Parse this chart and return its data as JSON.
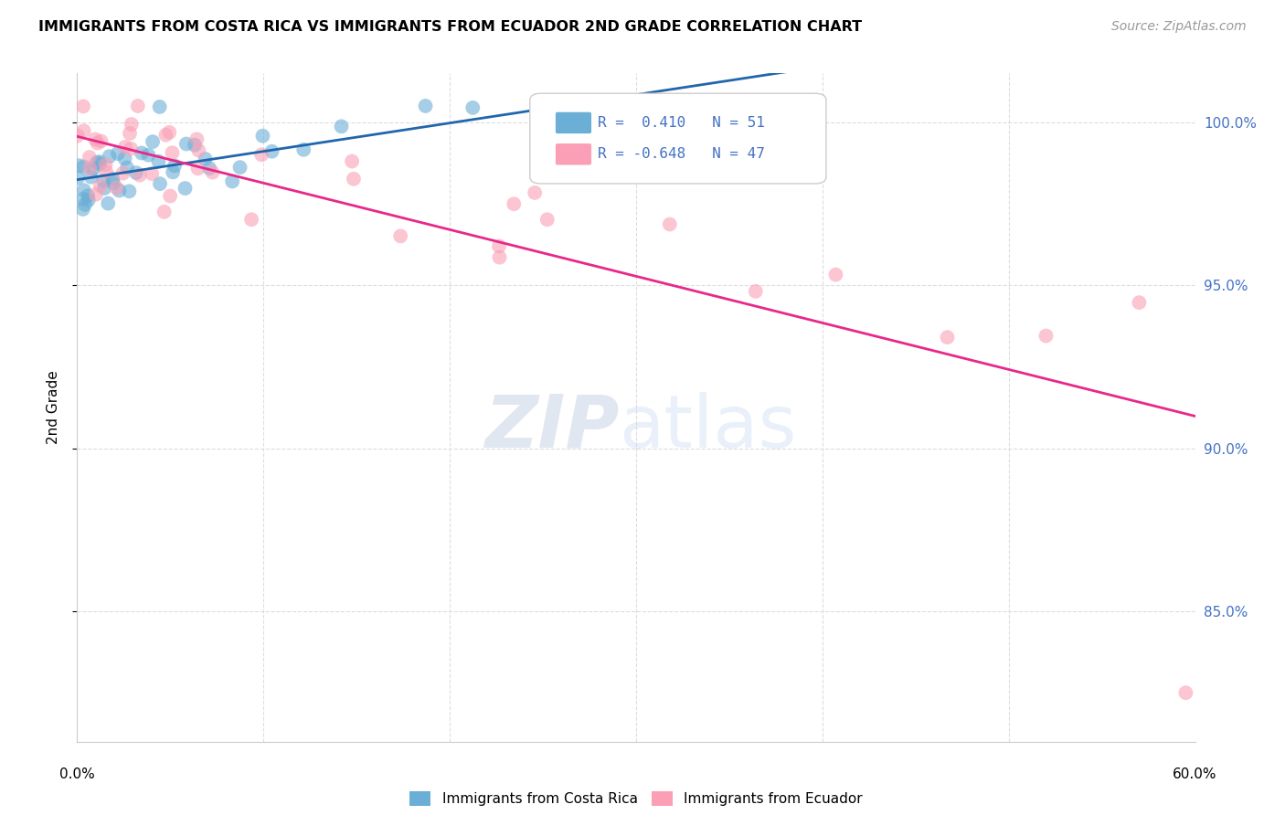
{
  "title": "IMMIGRANTS FROM COSTA RICA VS IMMIGRANTS FROM ECUADOR 2ND GRADE CORRELATION CHART",
  "source": "Source: ZipAtlas.com",
  "ylabel": "2nd Grade",
  "legend_R1": "0.410",
  "legend_N1": "51",
  "legend_R2": "-0.648",
  "legend_N2": "47",
  "blue_color": "#6baed6",
  "pink_color": "#fa9fb5",
  "blue_line_color": "#2166ac",
  "pink_line_color": "#e7298a",
  "grid_color": "#dddddd",
  "right_axis_color": "#4472c4",
  "xlim": [
    0.0,
    0.6
  ],
  "ylim": [
    81.0,
    101.5
  ],
  "yticks": [
    85,
    90,
    95,
    100
  ],
  "ytick_labels": [
    "85.0%",
    "90.0%",
    "95.0%",
    "100.0%"
  ]
}
